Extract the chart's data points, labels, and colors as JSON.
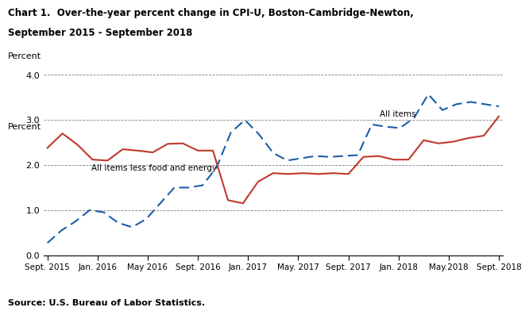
{
  "title_line1": "Chart 1.  Over-the-year percent change in CPI-U, Boston-Cambridge-Newton,",
  "title_line2": "September 2015 - September 2018",
  "ylabel": "Percent",
  "source": "Source: U.S. Bureau of Labor Statistics.",
  "xtick_labels": [
    "Sept. 2015",
    "Jan. 2016",
    "May 2016",
    "Sept. 2016",
    "Jan. 2017",
    "May. 2017",
    "Sept. 2017",
    "Jan. 2018",
    "May.2018",
    "Sept. 2018"
  ],
  "ylim": [
    0.0,
    4.0
  ],
  "yticks": [
    0.0,
    1.0,
    2.0,
    3.0,
    4.0
  ],
  "all_items_label": "All items",
  "core_label": "All items less food and energy",
  "all_items_color": "#1a5ea8",
  "core_color": "#c0392b",
  "all_items_y": [
    0.27,
    0.55,
    0.75,
    1.0,
    0.95,
    0.72,
    0.62,
    0.8,
    1.15,
    1.5,
    1.5,
    1.55,
    1.95,
    2.72,
    3.0,
    2.68,
    2.27,
    2.1,
    2.15,
    2.2,
    2.18,
    2.2,
    2.22,
    2.9,
    2.85,
    2.82,
    3.05,
    3.57,
    3.22,
    3.35,
    3.4,
    3.35,
    3.3
  ],
  "core_y": [
    2.38,
    2.7,
    2.45,
    2.12,
    2.1,
    2.35,
    2.32,
    2.28,
    2.47,
    2.48,
    2.32,
    2.32,
    1.22,
    1.15,
    1.63,
    1.82,
    1.8,
    1.82,
    1.8,
    1.82,
    1.8,
    2.18,
    2.2,
    2.12,
    2.12,
    2.55,
    2.48,
    2.52,
    2.6,
    2.65,
    3.08
  ],
  "background_color": "#ffffff",
  "xtick_positions": [
    0,
    4,
    8,
    12,
    16,
    20,
    24,
    28,
    32,
    36
  ],
  "all_items_n": 33,
  "core_n": 31
}
